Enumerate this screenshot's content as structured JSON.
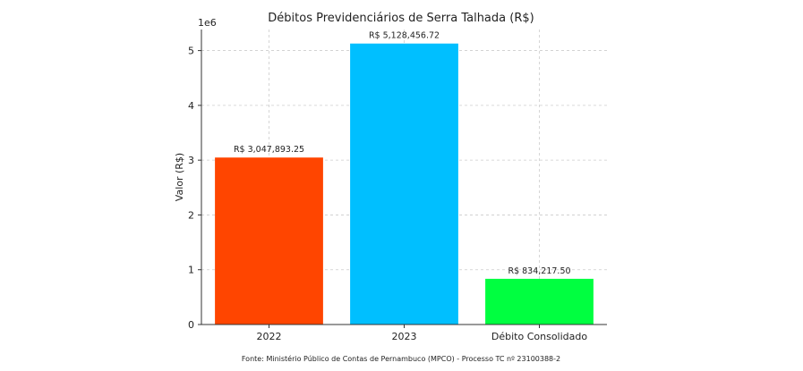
{
  "chart_data": {
    "type": "bar",
    "title": "Débitos Previdenciários de Serra Talhada (R$)",
    "y_label": "Valor (R$)",
    "y_offset_label": "1e6",
    "source": "Fonte: Ministério Público de Contas de Pernambuco (MPCO) - Processo TC nº 23100388-2",
    "categories": [
      "2022",
      "2023",
      "Débito Consolidado"
    ],
    "values": [
      3047893.25,
      5128456.72,
      834217.5
    ],
    "value_labels": [
      "R$ 3,047,893.25",
      "R$ 5,128,456.72",
      "R$ 834,217.50"
    ],
    "colors": [
      "#ff4500",
      "#00bfff",
      "#00ff40"
    ],
    "ylim": [
      0,
      5384879.56
    ],
    "yticks": [
      0,
      {
        "value": 1000000,
        "label": "1"
      },
      {
        "value": 2000000,
        "label": "2"
      },
      {
        "value": 3000000,
        "label": "3"
      },
      {
        "value": 4000000,
        "label": "4"
      },
      {
        "value": 5000000,
        "label": "5"
      }
    ],
    "grid": true
  }
}
